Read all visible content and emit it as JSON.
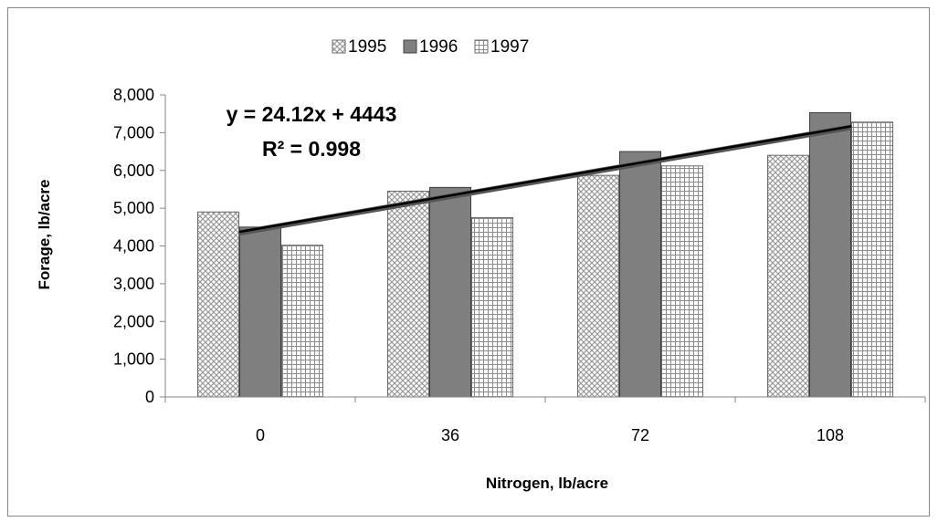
{
  "chart_data": {
    "type": "bar",
    "title": "",
    "xlabel": "Nitrogen, lb/acre",
    "ylabel": "Forage, lb/acre",
    "categories": [
      "0",
      "36",
      "72",
      "108"
    ],
    "series": [
      {
        "name": "1995",
        "values": [
          4900,
          5450,
          5870,
          6400
        ],
        "pattern": "diagonal-crosshatch"
      },
      {
        "name": "1996",
        "values": [
          4500,
          5550,
          6500,
          7530
        ],
        "pattern": "solid"
      },
      {
        "name": "1997",
        "values": [
          4020,
          4750,
          6120,
          7280
        ],
        "pattern": "grid"
      }
    ],
    "ylim": [
      0,
      8000
    ],
    "yticks": [
      0,
      1000,
      2000,
      3000,
      4000,
      5000,
      6000,
      7000,
      8000
    ],
    "ytick_labels": [
      "0",
      "1,000",
      "2,000",
      "3,000",
      "4,000",
      "5,000",
      "6,000",
      "7,000",
      "8,000"
    ],
    "trendline": {
      "slope": 24.12,
      "intercept": 4443,
      "x_range": [
        -4,
        112
      ]
    },
    "annotations": {
      "equation": "y = 24.12x + 4443",
      "r2": "R² = 0.998"
    },
    "legend_position": "top",
    "grid": false,
    "colors": {
      "series_1995": "#bfbfbf",
      "series_1996": "#7f7f7f",
      "series_1997": "#bfbfbf",
      "trendline": "#000000",
      "axis": "#868686"
    }
  }
}
